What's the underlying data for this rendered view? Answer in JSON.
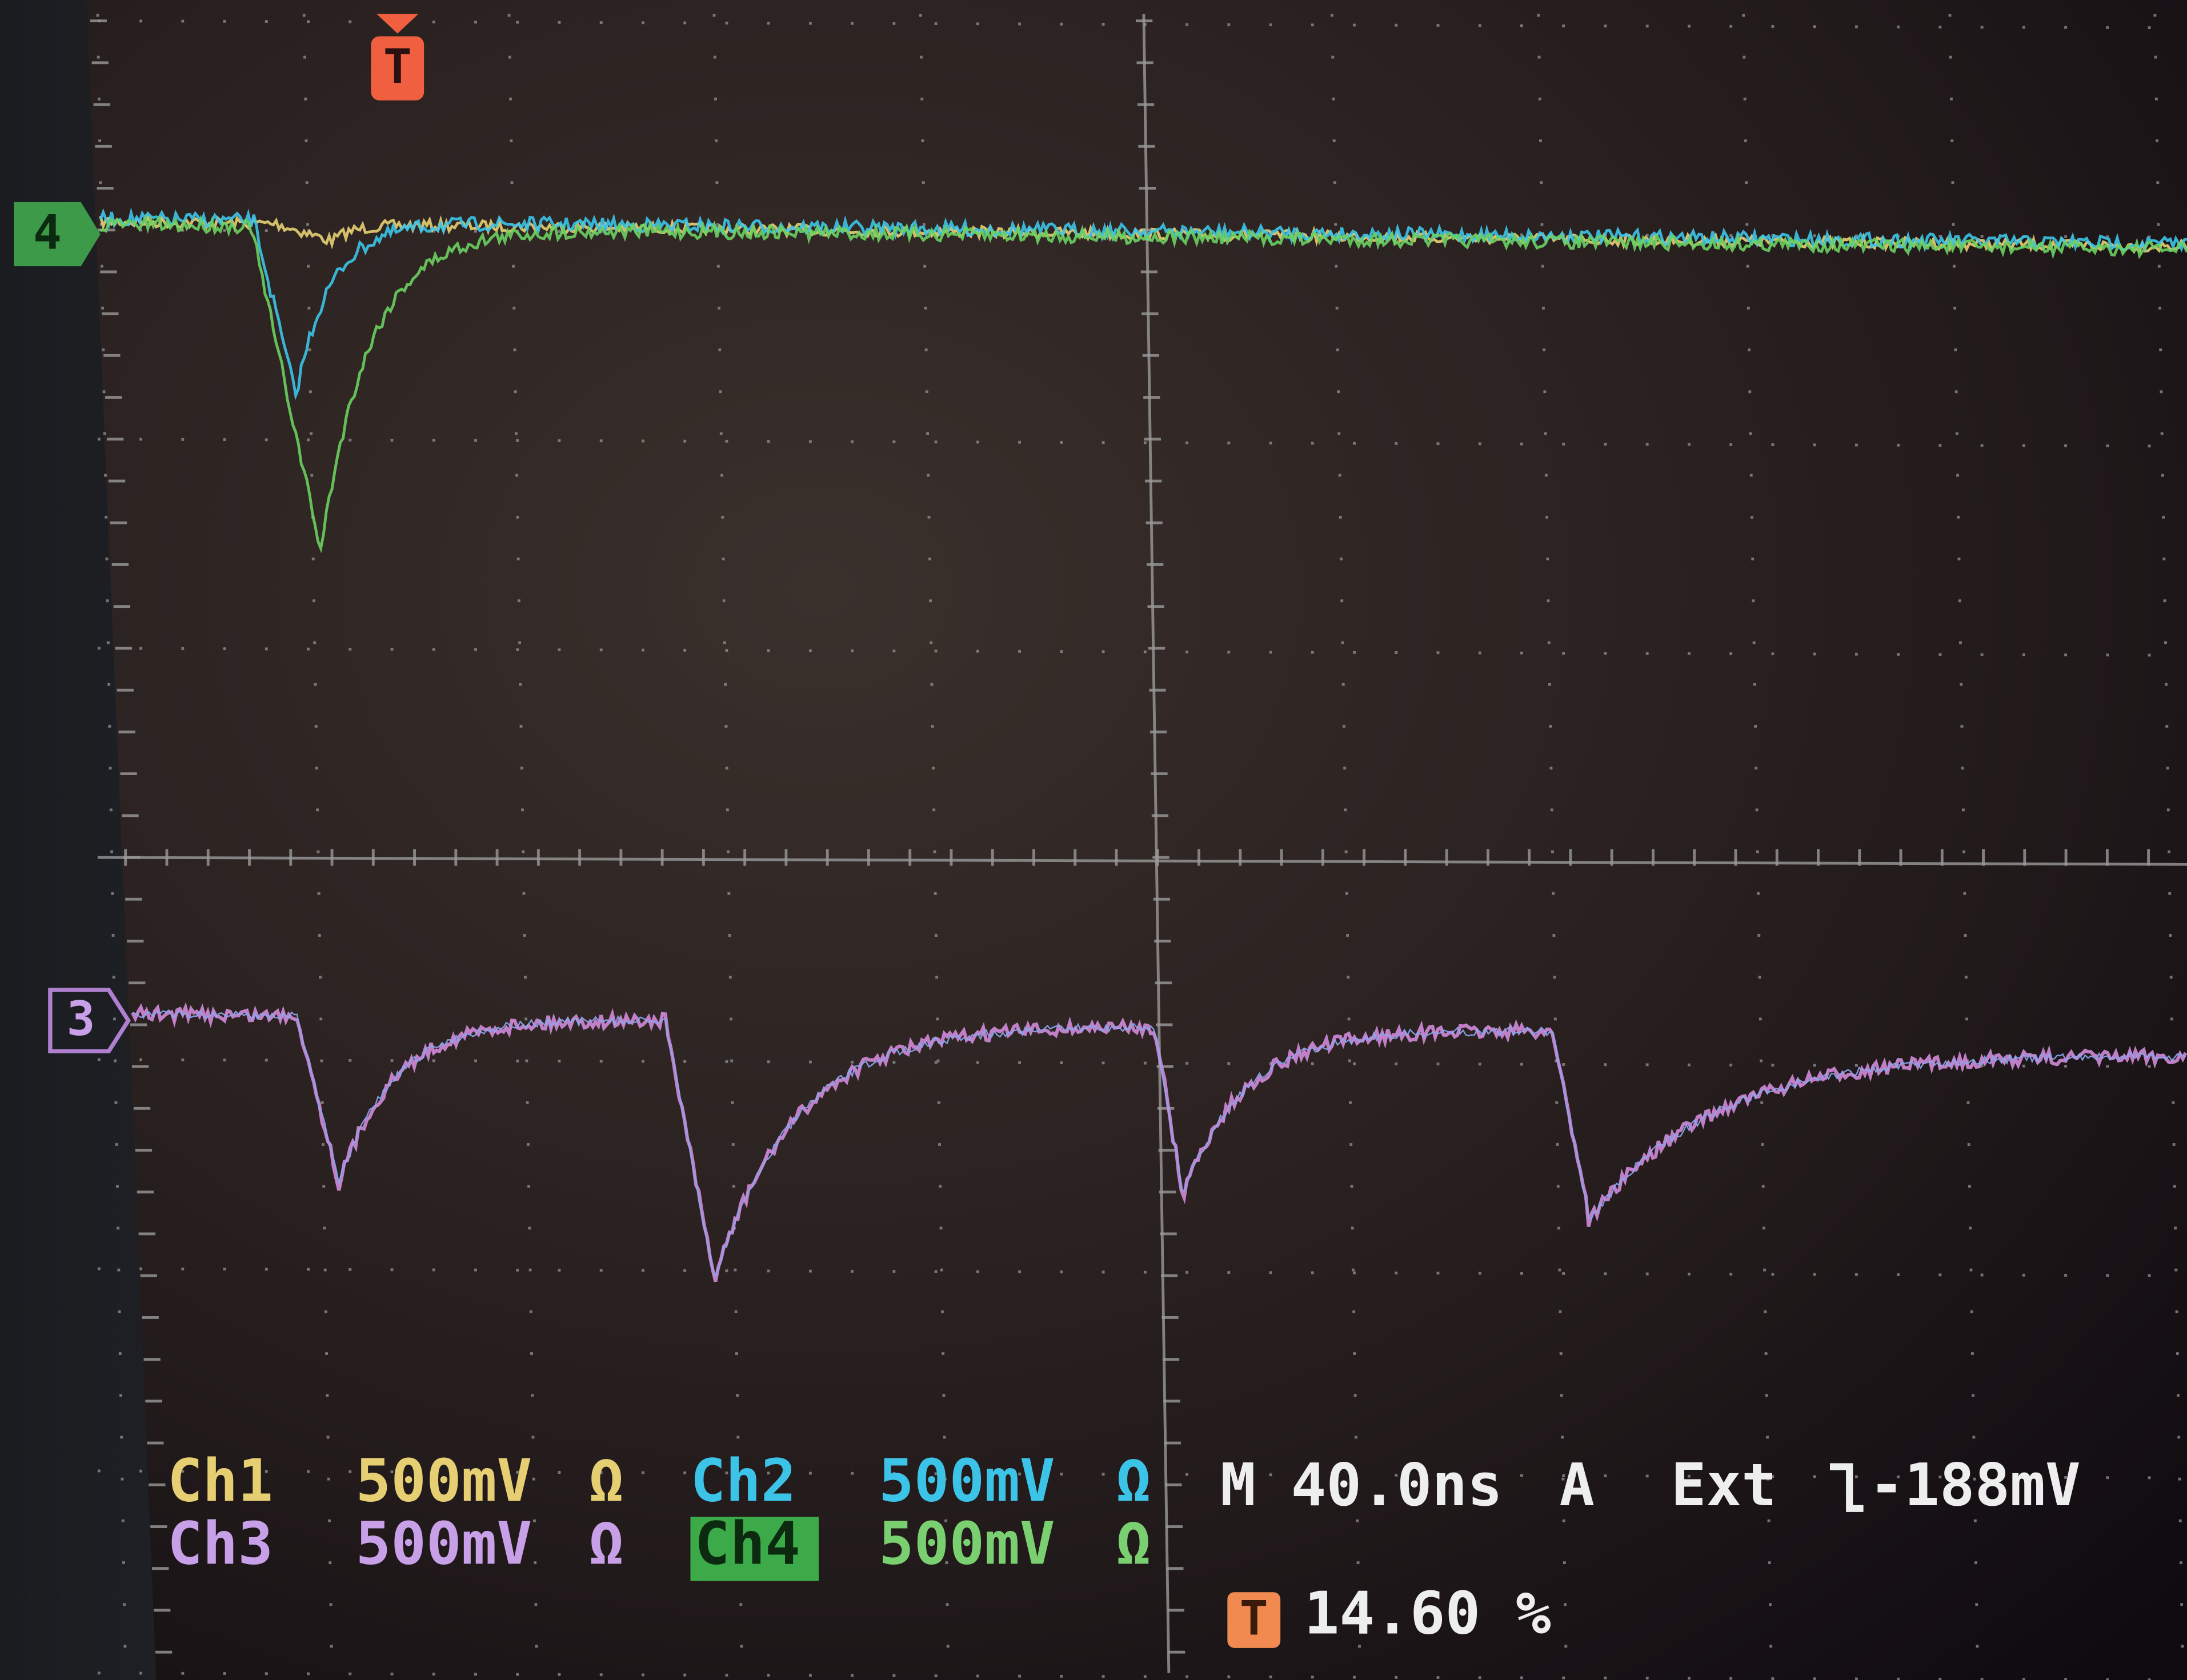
{
  "trigger_marker": "T",
  "channel_markers": [
    "4",
    "3"
  ],
  "readout": {
    "channels": [
      {
        "name": "Ch1",
        "scale": "500mV",
        "coupling": "Ω"
      },
      {
        "name": "Ch2",
        "scale": "500mV",
        "coupling": "Ω"
      },
      {
        "name": "Ch3",
        "scale": "500mV",
        "coupling": "Ω"
      },
      {
        "name": "Ch4",
        "scale": "500mV",
        "coupling": "Ω"
      }
    ],
    "timebase": "M 40.0ns",
    "acquisition": "A",
    "trigger_source": "Ext",
    "trigger_level": "-188mV",
    "trigger_position_marker": "T",
    "trigger_position": "14.60 %"
  }
}
